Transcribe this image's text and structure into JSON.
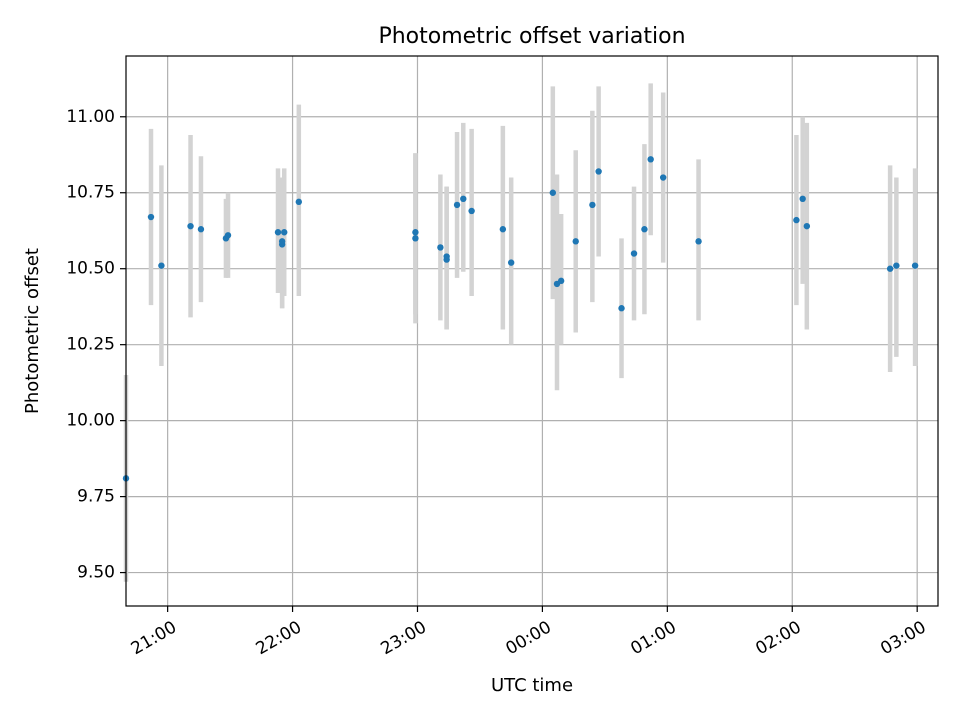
{
  "chart_data": {
    "type": "scatter",
    "title": "Photometric offset variation",
    "xlabel": "UTC time",
    "ylabel": "Photometric offset",
    "x_axis": {
      "kind": "time",
      "min": "20:40",
      "max": "03:10",
      "ticks": [
        "21:00",
        "22:00",
        "23:00",
        "00:00",
        "01:00",
        "02:00",
        "03:00"
      ]
    },
    "ylim": [
      9.39,
      11.2
    ],
    "yticks": [
      "9.50",
      "9.75",
      "10.00",
      "10.25",
      "10.50",
      "10.75",
      "11.00"
    ],
    "grid": true,
    "colors": {
      "point": "#1f77b4",
      "errorbar": "#d3d3d3",
      "grid": "#b0b0b0"
    },
    "series": [
      {
        "points": [
          {
            "time": "20:40",
            "y": 9.81,
            "lo": 9.47,
            "hi": 10.15
          },
          {
            "time": "20:52",
            "y": 10.67,
            "lo": 10.38,
            "hi": 10.96
          },
          {
            "time": "20:57",
            "y": 10.51,
            "lo": 10.18,
            "hi": 10.84
          },
          {
            "time": "21:11",
            "y": 10.64,
            "lo": 10.34,
            "hi": 10.94
          },
          {
            "time": "21:16",
            "y": 10.63,
            "lo": 10.39,
            "hi": 10.87
          },
          {
            "time": "21:28",
            "y": 10.6,
            "lo": 10.47,
            "hi": 10.73
          },
          {
            "time": "21:29",
            "y": 10.61,
            "lo": 10.47,
            "hi": 10.75
          },
          {
            "time": "21:53",
            "y": 10.62,
            "lo": 10.42,
            "hi": 10.83
          },
          {
            "time": "21:55",
            "y": 10.58,
            "lo": 10.37,
            "hi": 10.8
          },
          {
            "time": "21:55",
            "y": 10.59,
            "lo": 10.37,
            "hi": 10.8
          },
          {
            "time": "21:56",
            "y": 10.62,
            "lo": 10.41,
            "hi": 10.83
          },
          {
            "time": "22:03",
            "y": 10.72,
            "lo": 10.41,
            "hi": 11.04
          },
          {
            "time": "22:59",
            "y": 10.6,
            "lo": 10.32,
            "hi": 10.88
          },
          {
            "time": "22:59",
            "y": 10.62,
            "lo": 10.35,
            "hi": 10.88
          },
          {
            "time": "23:11",
            "y": 10.57,
            "lo": 10.33,
            "hi": 10.81
          },
          {
            "time": "23:14",
            "y": 10.53,
            "lo": 10.3,
            "hi": 10.77
          },
          {
            "time": "23:14",
            "y": 10.54,
            "lo": 10.3,
            "hi": 10.77
          },
          {
            "time": "23:19",
            "y": 10.71,
            "lo": 10.47,
            "hi": 10.95
          },
          {
            "time": "23:22",
            "y": 10.73,
            "lo": 10.49,
            "hi": 10.98
          },
          {
            "time": "23:26",
            "y": 10.69,
            "lo": 10.41,
            "hi": 10.96
          },
          {
            "time": "23:41",
            "y": 10.63,
            "lo": 10.3,
            "hi": 10.97
          },
          {
            "time": "23:45",
            "y": 10.52,
            "lo": 10.25,
            "hi": 10.8
          },
          {
            "time": "00:05",
            "y": 10.75,
            "lo": 10.4,
            "hi": 11.1
          },
          {
            "time": "00:07",
            "y": 10.45,
            "lo": 10.1,
            "hi": 10.81
          },
          {
            "time": "00:09",
            "y": 10.46,
            "lo": 10.25,
            "hi": 10.68
          },
          {
            "time": "00:16",
            "y": 10.59,
            "lo": 10.29,
            "hi": 10.89
          },
          {
            "time": "00:24",
            "y": 10.71,
            "lo": 10.39,
            "hi": 11.02
          },
          {
            "time": "00:27",
            "y": 10.82,
            "lo": 10.54,
            "hi": 11.1
          },
          {
            "time": "00:38",
            "y": 10.37,
            "lo": 10.14,
            "hi": 10.6
          },
          {
            "time": "00:44",
            "y": 10.55,
            "lo": 10.33,
            "hi": 10.77
          },
          {
            "time": "00:49",
            "y": 10.63,
            "lo": 10.35,
            "hi": 10.91
          },
          {
            "time": "00:52",
            "y": 10.86,
            "lo": 10.61,
            "hi": 11.11
          },
          {
            "time": "00:58",
            "y": 10.8,
            "lo": 10.52,
            "hi": 11.08
          },
          {
            "time": "01:15",
            "y": 10.59,
            "lo": 10.33,
            "hi": 10.86
          },
          {
            "time": "02:02",
            "y": 10.66,
            "lo": 10.38,
            "hi": 10.94
          },
          {
            "time": "02:05",
            "y": 10.73,
            "lo": 10.45,
            "hi": 11.0
          },
          {
            "time": "02:07",
            "y": 10.64,
            "lo": 10.3,
            "hi": 10.98
          },
          {
            "time": "02:47",
            "y": 10.5,
            "lo": 10.16,
            "hi": 10.84
          },
          {
            "time": "02:50",
            "y": 10.51,
            "lo": 10.21,
            "hi": 10.8
          },
          {
            "time": "02:59",
            "y": 10.51,
            "lo": 10.18,
            "hi": 10.83
          }
        ]
      }
    ]
  }
}
